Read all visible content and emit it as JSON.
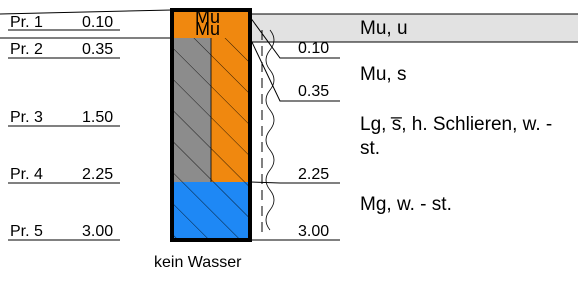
{
  "samples": [
    {
      "name": "Pr. 1",
      "depth": "0.10"
    },
    {
      "name": "Pr. 2",
      "depth": "0.35"
    },
    {
      "name": "Pr. 3",
      "depth": "1.50"
    },
    {
      "name": "Pr. 4",
      "depth": "2.25"
    },
    {
      "name": "Pr. 5",
      "depth": "3.00"
    }
  ],
  "column_labels": [
    "Mu",
    "Mu"
  ],
  "depth_labels": [
    "0.10",
    "0.35",
    "2.25",
    "3.00"
  ],
  "layers": [
    "Mu, u",
    "Mu, s",
    "Lg, s̅, h. Schlieren, w. - st.",
    "Mg, w. - st."
  ],
  "water": "kein Wasser"
}
